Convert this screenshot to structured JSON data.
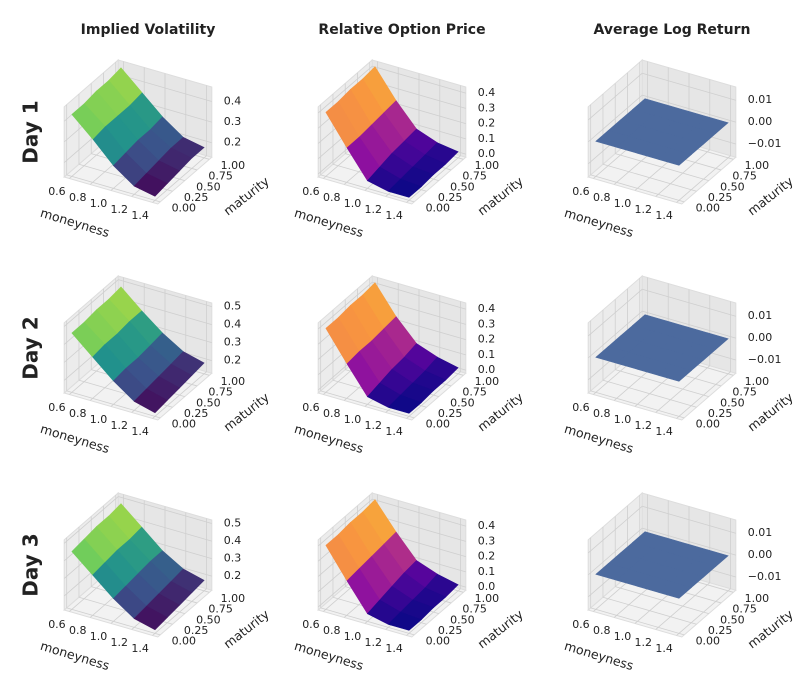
{
  "chart_data": [
    {
      "type": "surface",
      "title": "Implied Volatility",
      "row_label": "Day 1",
      "xlabel": "moneyness",
      "ylabel": "maturity",
      "colormap": "viridis",
      "x": [
        0.6,
        0.8,
        1.0,
        1.2,
        1.4
      ],
      "y": [
        0,
        0.25,
        0.5,
        0.75,
        1.0
      ],
      "z": [
        [
          0.43,
          0.43,
          0.44,
          0.44,
          0.45
        ],
        [
          0.34,
          0.35,
          0.35,
          0.35,
          0.36
        ],
        [
          0.24,
          0.25,
          0.26,
          0.26,
          0.27
        ],
        [
          0.17,
          0.18,
          0.19,
          0.2,
          0.2
        ],
        [
          0.15,
          0.16,
          0.17,
          0.18,
          0.18
        ]
      ],
      "xlim": [
        0.55,
        1.45
      ],
      "ylim": [
        -0.05,
        1.05
      ],
      "zlim": [
        0.13,
        0.47
      ],
      "xticks": [
        0.6,
        0.8,
        {
          "value": 1.0,
          "label": "1.0"
        },
        1.2,
        1.4
      ],
      "yticks": [
        {
          "value": 0,
          "label": "0.00"
        },
        0.25,
        {
          "value": 0.5,
          "label": "0.50"
        },
        0.75,
        {
          "value": 1.0,
          "label": "1.00"
        }
      ],
      "zticks": [
        0.2,
        0.3,
        0.4
      ]
    },
    {
      "type": "surface",
      "title": "Relative Option Price",
      "xlabel": "moneyness",
      "ylabel": "maturity",
      "colormap": "plasma",
      "x": [
        0.6,
        0.8,
        1.0,
        1.2,
        1.4
      ],
      "y": [
        0,
        0.25,
        0.5,
        0.75,
        1.0
      ],
      "z": [
        [
          0.4,
          0.4,
          0.41,
          0.41,
          0.42
        ],
        [
          0.21,
          0.21,
          0.22,
          0.23,
          0.24
        ],
        [
          0.03,
          0.05,
          0.07,
          0.08,
          0.09
        ],
        [
          0.0,
          0.01,
          0.02,
          0.03,
          0.04
        ],
        [
          0.0,
          0.0,
          0.01,
          0.01,
          0.02
        ]
      ],
      "xlim": [
        0.55,
        1.45
      ],
      "ylim": [
        -0.05,
        1.05
      ],
      "zlim": [
        -0.02,
        0.44
      ],
      "xticks": [
        0.6,
        0.8,
        {
          "value": 1.0,
          "label": "1.0"
        },
        1.2,
        1.4
      ],
      "yticks": [
        {
          "value": 0,
          "label": "0.00"
        },
        0.25,
        {
          "value": 0.5,
          "label": "0.50"
        },
        0.75,
        {
          "value": 1.0,
          "label": "1.00"
        }
      ],
      "zticks": [
        {
          "value": 0,
          "label": "0.0"
        },
        0.1,
        0.2,
        0.3,
        0.4
      ]
    },
    {
      "type": "surface",
      "title": "Average Log Return",
      "xlabel": "moneyness",
      "ylabel": "maturity",
      "color": "#4c6a9e",
      "x": [
        0.6,
        0.8,
        1.0,
        1.2,
        1.4
      ],
      "y": [
        0,
        0.25,
        0.5,
        0.75,
        1.0
      ],
      "z": [
        [
          0,
          0,
          0,
          0,
          0
        ],
        [
          0,
          0,
          0,
          0,
          0
        ],
        [
          0,
          0,
          0,
          0,
          0
        ],
        [
          0,
          0,
          0,
          0,
          0
        ],
        [
          0,
          0,
          0,
          0,
          0
        ]
      ],
      "xlim": [
        0.55,
        1.45
      ],
      "ylim": [
        -0.05,
        1.05
      ],
      "zlim": [
        -0.016,
        0.016
      ],
      "xticks": [
        0.6,
        0.8,
        {
          "value": 1.0,
          "label": "1.0"
        },
        1.2,
        1.4
      ],
      "yticks": [
        {
          "value": 0,
          "label": "0.00"
        },
        0.25,
        {
          "value": 0.5,
          "label": "0.50"
        },
        0.75,
        {
          "value": 1.0,
          "label": "1.00"
        }
      ],
      "zticks": [
        {
          "value": -0.01,
          "label": "−0.01"
        },
        {
          "value": 0,
          "label": "0.00"
        },
        0.01
      ]
    },
    {
      "type": "surface",
      "row_label": "Day 2",
      "xlabel": "moneyness",
      "ylabel": "maturity",
      "colormap": "viridis",
      "x": [
        0.6,
        0.8,
        1.0,
        1.2,
        1.4
      ],
      "y": [
        0,
        0.25,
        0.5,
        0.75,
        1.0
      ],
      "z": [
        [
          0.46,
          0.46,
          0.47,
          0.47,
          0.48
        ],
        [
          0.36,
          0.37,
          0.37,
          0.38,
          0.38
        ],
        [
          0.26,
          0.27,
          0.27,
          0.28,
          0.29
        ],
        [
          0.18,
          0.19,
          0.2,
          0.21,
          0.22
        ],
        [
          0.15,
          0.16,
          0.17,
          0.18,
          0.19
        ]
      ],
      "xlim": [
        0.55,
        1.45
      ],
      "ylim": [
        -0.05,
        1.05
      ],
      "zlim": [
        0.13,
        0.52
      ],
      "xticks": [
        0.6,
        0.8,
        {
          "value": 1.0,
          "label": "1.0"
        },
        1.2,
        1.4
      ],
      "yticks": [
        {
          "value": 0,
          "label": "0.00"
        },
        0.25,
        {
          "value": 0.5,
          "label": "0.50"
        },
        0.75,
        {
          "value": 1.0,
          "label": "1.00"
        }
      ],
      "zticks": [
        0.2,
        0.3,
        0.4,
        0.5
      ]
    },
    {
      "type": "surface",
      "xlabel": "moneyness",
      "ylabel": "maturity",
      "colormap": "plasma",
      "x": [
        0.6,
        0.8,
        1.0,
        1.2,
        1.4
      ],
      "y": [
        0,
        0.25,
        0.5,
        0.75,
        1.0
      ],
      "z": [
        [
          0.4,
          0.4,
          0.41,
          0.41,
          0.42
        ],
        [
          0.21,
          0.22,
          0.22,
          0.23,
          0.24
        ],
        [
          0.03,
          0.05,
          0.07,
          0.08,
          0.1
        ],
        [
          0.0,
          0.01,
          0.02,
          0.03,
          0.05
        ],
        [
          0.0,
          0.0,
          0.01,
          0.01,
          0.02
        ]
      ],
      "xlim": [
        0.55,
        1.45
      ],
      "ylim": [
        -0.05,
        1.05
      ],
      "zlim": [
        -0.02,
        0.44
      ],
      "xticks": [
        0.6,
        0.8,
        {
          "value": 1.0,
          "label": "1.0"
        },
        1.2,
        1.4
      ],
      "yticks": [
        {
          "value": 0,
          "label": "0.00"
        },
        0.25,
        {
          "value": 0.5,
          "label": "0.50"
        },
        0.75,
        {
          "value": 1.0,
          "label": "1.00"
        }
      ],
      "zticks": [
        {
          "value": 0,
          "label": "0.0"
        },
        0.1,
        0.2,
        0.3,
        0.4
      ]
    },
    {
      "type": "surface",
      "xlabel": "moneyness",
      "ylabel": "maturity",
      "color": "#4c6a9e",
      "x": [
        0.6,
        0.8,
        1.0,
        1.2,
        1.4
      ],
      "y": [
        0,
        0.25,
        0.5,
        0.75,
        1.0
      ],
      "z": [
        [
          0,
          0,
          0,
          0,
          0
        ],
        [
          0,
          0,
          0,
          0,
          0
        ],
        [
          0,
          0,
          0,
          0,
          0
        ],
        [
          0,
          0,
          0,
          0,
          0
        ],
        [
          0,
          0,
          0,
          0,
          0
        ]
      ],
      "xlim": [
        0.55,
        1.45
      ],
      "ylim": [
        -0.05,
        1.05
      ],
      "zlim": [
        -0.016,
        0.016
      ],
      "xticks": [
        0.6,
        0.8,
        {
          "value": 1.0,
          "label": "1.0"
        },
        1.2,
        1.4
      ],
      "yticks": [
        {
          "value": 0,
          "label": "0.00"
        },
        0.25,
        {
          "value": 0.5,
          "label": "0.50"
        },
        0.75,
        {
          "value": 1.0,
          "label": "1.00"
        }
      ],
      "zticks": [
        {
          "value": -0.01,
          "label": "−0.01"
        },
        {
          "value": 0,
          "label": "0.00"
        },
        0.01
      ]
    },
    {
      "type": "surface",
      "row_label": "Day 3",
      "xlabel": "moneyness",
      "ylabel": "maturity",
      "colormap": "viridis",
      "x": [
        0.6,
        0.8,
        1.0,
        1.2,
        1.4
      ],
      "y": [
        0,
        0.25,
        0.5,
        0.75,
        1.0
      ],
      "z": [
        [
          0.45,
          0.46,
          0.47,
          0.47,
          0.48
        ],
        [
          0.35,
          0.36,
          0.37,
          0.37,
          0.38
        ],
        [
          0.25,
          0.26,
          0.27,
          0.28,
          0.28
        ],
        [
          0.17,
          0.18,
          0.19,
          0.2,
          0.21
        ],
        [
          0.14,
          0.15,
          0.16,
          0.17,
          0.18
        ]
      ],
      "xlim": [
        0.55,
        1.45
      ],
      "ylim": [
        -0.05,
        1.05
      ],
      "zlim": [
        0.12,
        0.52
      ],
      "xticks": [
        0.6,
        0.8,
        {
          "value": 1.0,
          "label": "1.0"
        },
        1.2,
        1.4
      ],
      "yticks": [
        {
          "value": 0,
          "label": "0.00"
        },
        0.25,
        {
          "value": 0.5,
          "label": "0.50"
        },
        0.75,
        {
          "value": 1.0,
          "label": "1.00"
        }
      ],
      "zticks": [
        0.2,
        0.3,
        0.4,
        0.5
      ]
    },
    {
      "type": "surface",
      "xlabel": "moneyness",
      "ylabel": "maturity",
      "colormap": "plasma",
      "x": [
        0.6,
        0.8,
        1.0,
        1.2,
        1.4
      ],
      "y": [
        0,
        0.25,
        0.5,
        0.75,
        1.0
      ],
      "z": [
        [
          0.4,
          0.4,
          0.41,
          0.41,
          0.42
        ],
        [
          0.21,
          0.22,
          0.23,
          0.24,
          0.25
        ],
        [
          0.03,
          0.05,
          0.07,
          0.09,
          0.1
        ],
        [
          0.0,
          0.01,
          0.02,
          0.03,
          0.05
        ],
        [
          0.0,
          0.0,
          0.01,
          0.01,
          0.02
        ]
      ],
      "xlim": [
        0.55,
        1.45
      ],
      "ylim": [
        -0.05,
        1.05
      ],
      "zlim": [
        -0.02,
        0.44
      ],
      "xticks": [
        0.6,
        0.8,
        {
          "value": 1.0,
          "label": "1.0"
        },
        1.2,
        1.4
      ],
      "yticks": [
        {
          "value": 0,
          "label": "0.00"
        },
        0.25,
        {
          "value": 0.5,
          "label": "0.50"
        },
        0.75,
        {
          "value": 1.0,
          "label": "1.00"
        }
      ],
      "zticks": [
        {
          "value": 0,
          "label": "0.0"
        },
        0.1,
        0.2,
        0.3,
        0.4
      ]
    },
    {
      "type": "surface",
      "xlabel": "moneyness",
      "ylabel": "maturity",
      "color": "#4c6a9e",
      "x": [
        0.6,
        0.8,
        1.0,
        1.2,
        1.4
      ],
      "y": [
        0,
        0.25,
        0.5,
        0.75,
        1.0
      ],
      "z": [
        [
          0,
          0,
          0,
          0,
          0
        ],
        [
          0,
          0,
          0,
          0,
          0
        ],
        [
          0,
          0,
          0,
          0,
          0
        ],
        [
          0,
          0,
          0,
          0,
          0
        ],
        [
          0,
          0,
          0,
          0,
          0
        ]
      ],
      "xlim": [
        0.55,
        1.45
      ],
      "ylim": [
        -0.05,
        1.05
      ],
      "zlim": [
        -0.016,
        0.016
      ],
      "xticks": [
        0.6,
        0.8,
        {
          "value": 1.0,
          "label": "1.0"
        },
        1.2,
        1.4
      ],
      "yticks": [
        {
          "value": 0,
          "label": "0.00"
        },
        0.25,
        {
          "value": 0.5,
          "label": "0.50"
        },
        0.75,
        {
          "value": 1.0,
          "label": "1.00"
        }
      ],
      "zticks": [
        {
          "value": -0.01,
          "label": "−0.01"
        },
        {
          "value": 0,
          "label": "0.00"
        },
        0.01
      ]
    }
  ]
}
